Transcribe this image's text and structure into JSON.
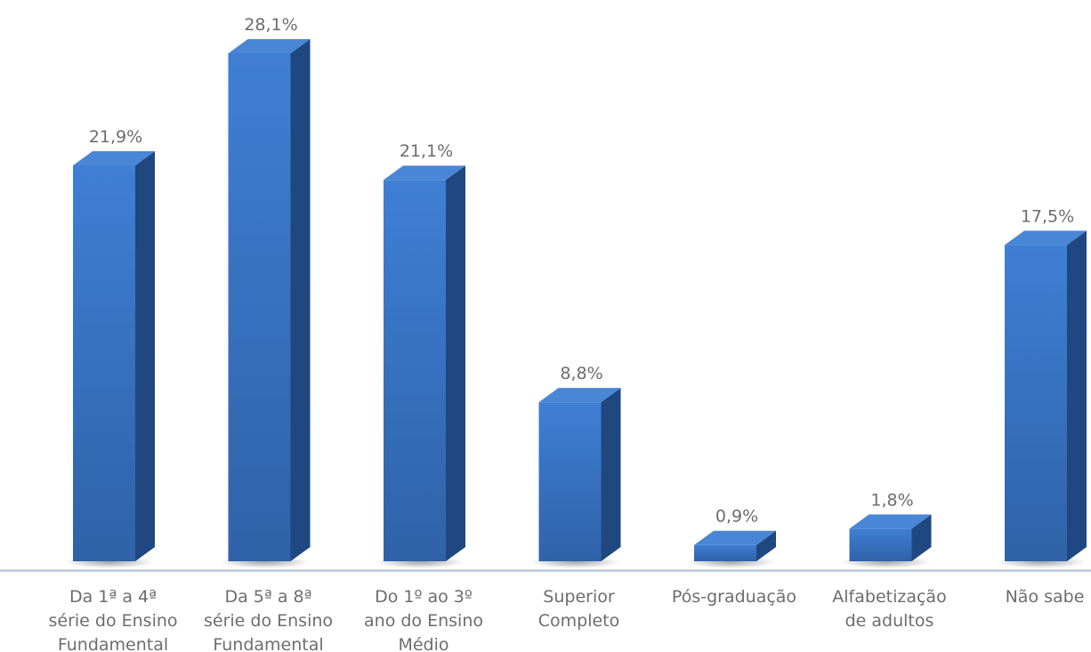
{
  "chart_data": {
    "type": "bar",
    "style": "3d-columns",
    "title": "",
    "xlabel": "",
    "ylabel": "",
    "ylim": [
      0,
      28.1
    ],
    "grid": false,
    "legend": "none",
    "categories": [
      "Da 1ª a 4ª série do Ensino Fundamental",
      "Da 5ª a 8ª série do Ensino Fundamental",
      "Do 1º ao 3º ano do Ensino Médio",
      "Superior Completo",
      "Pós-graduação",
      "Alfabetização de adultos",
      "Não sabe"
    ],
    "category_label_lines": [
      [
        "Da 1ª a 4ª",
        "série do Ensino",
        "Fundamental"
      ],
      [
        "Da 5ª a 8ª",
        "série do Ensino",
        "Fundamental"
      ],
      [
        "Do 1º ao 3º",
        "ano do Ensino",
        "Médio"
      ],
      [
        "Superior",
        "Completo"
      ],
      [
        "Pós-graduação"
      ],
      [
        "Alfabetização",
        "de adultos"
      ],
      [
        "Não sabe"
      ]
    ],
    "values": [
      21.9,
      28.1,
      21.1,
      8.8,
      0.9,
      1.8,
      17.5
    ],
    "data_labels": [
      "21,9%",
      "28,1%",
      "21,1%",
      "8,8%",
      "0,9%",
      "1,8%",
      "17,5%"
    ],
    "colors": {
      "front_top": "#3f7fd4",
      "front_bottom": "#2f62a8",
      "side": "#1f4880",
      "top": "#4a86d6",
      "baseline": "#c5cfe0",
      "text": "#6d6d6d"
    }
  }
}
